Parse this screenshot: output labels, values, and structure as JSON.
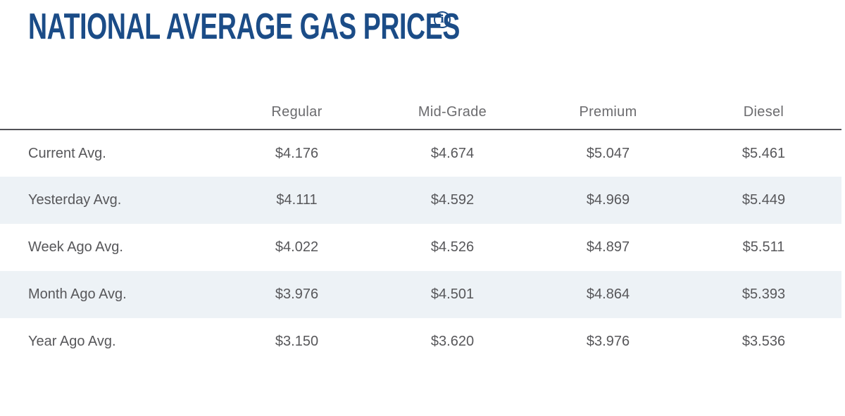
{
  "chart_data": {
    "type": "table",
    "title": "NATIONAL AVERAGE GAS PRICES",
    "columns": [
      "Regular",
      "Mid-Grade",
      "Premium",
      "Diesel"
    ],
    "rows": [
      {
        "label": "Current Avg.",
        "values": [
          "$4.176",
          "$4.674",
          "$5.047",
          "$5.461"
        ]
      },
      {
        "label": "Yesterday Avg.",
        "values": [
          "$4.111",
          "$4.592",
          "$4.969",
          "$5.449"
        ]
      },
      {
        "label": "Week Ago Avg.",
        "values": [
          "$4.022",
          "$4.526",
          "$4.897",
          "$5.511"
        ]
      },
      {
        "label": "Month Ago Avg.",
        "values": [
          "$3.976",
          "$4.501",
          "$4.864",
          "$5.393"
        ]
      },
      {
        "label": "Year Ago Avg.",
        "values": [
          "$3.150",
          "$3.620",
          "$3.976",
          "$3.536"
        ]
      }
    ],
    "layout": {
      "striped_rows": [
        1,
        3
      ],
      "header_divider": true
    }
  },
  "title": {
    "text": "NATIONAL AVERAGE GAS PRICES",
    "info_glyph": "i"
  },
  "colors": {
    "title_blue": "#1b4c87",
    "stripe": "#edf2f6",
    "body_text": "#57575a",
    "header_text": "#6b6b6e",
    "divider": "#515157"
  }
}
